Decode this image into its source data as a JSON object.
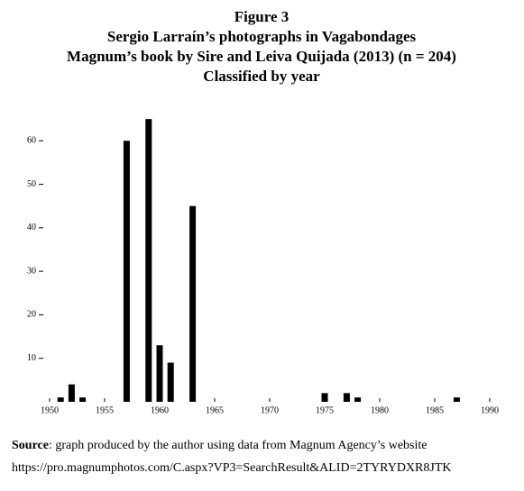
{
  "chart_data": {
    "type": "bar",
    "title": [
      "Figure 3",
      "Sergio Larraín’s photographs in Vagabondages",
      "Magnum’s book by Sire and Leiva Quijada (2013) (n = 204)",
      "Classified by year"
    ],
    "x": [
      1951,
      1952,
      1953,
      1957,
      1959,
      1960,
      1961,
      1963,
      1975,
      1977,
      1978,
      1987
    ],
    "values": [
      1,
      4,
      1,
      60,
      65,
      13,
      9,
      45,
      2,
      2,
      1,
      1
    ],
    "color": "#000000",
    "xlim": [
      1950,
      1990
    ],
    "xticks": [
      1950,
      1955,
      1960,
      1965,
      1970,
      1975,
      1980,
      1985,
      1990
    ],
    "ylim": [
      0,
      70
    ],
    "yticks": [
      10,
      20,
      30,
      40,
      50,
      60
    ],
    "source_label": "Source",
    "source_text": ": graph produced by the author using data from Magnum Agency’s website",
    "source_url": "https://pro.magnumphotos.com/C.aspx?VP3=SearchResult&ALID=2TYRYDXR8JTK"
  }
}
